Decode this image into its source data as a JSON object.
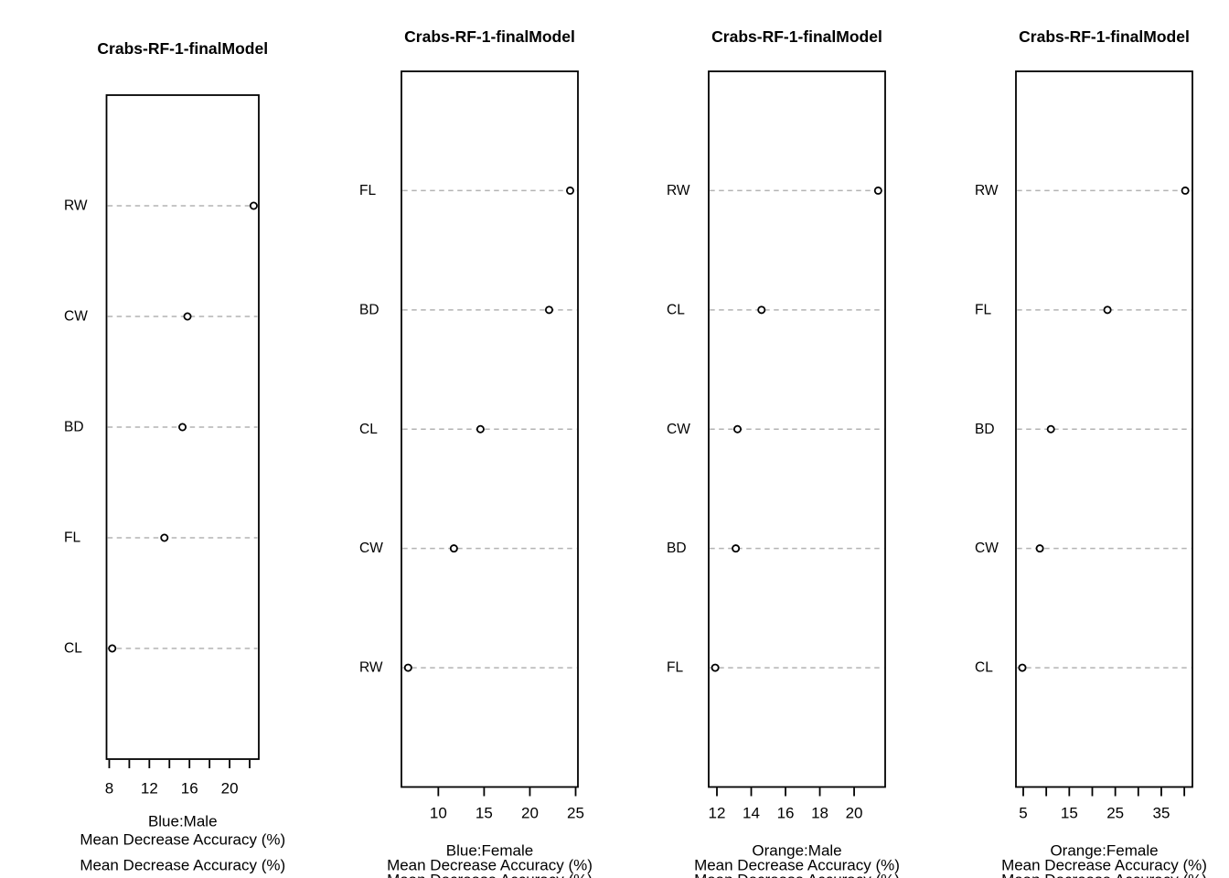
{
  "style": {
    "background": "#ffffff",
    "text_color": "#000000",
    "box_color": "#000000",
    "grid_color": "#b3b3b3",
    "point_fill": "#ffffff",
    "point_stroke": "#000000"
  },
  "chart_data": [
    {
      "type": "scatter",
      "subtype": "dotchart",
      "title": "Crabs-RF-1-finalModel",
      "categories": [
        "RW",
        "CW",
        "BD",
        "FL",
        "CL"
      ],
      "values": [
        22.4,
        15.8,
        15.3,
        13.5,
        8.3
      ],
      "xlabel": "Mean Decrease Accuracy (%)",
      "caption_lines": [
        "Blue:Male",
        "Mean Decrease Accuracy (%)",
        "Mean Decrease Accuracy (%)"
      ],
      "xlim": [
        7.73,
        22.91
      ],
      "ticks": [
        8,
        10,
        12,
        14,
        16,
        18,
        20,
        22
      ],
      "labeled_ticks": [
        8,
        12,
        16,
        20
      ],
      "grid": "dashed-horizontal",
      "legend": "none",
      "marker": "open-circle"
    },
    {
      "type": "scatter",
      "subtype": "dotchart",
      "title": "Crabs-RF-1-finalModel",
      "categories": [
        "FL",
        "BD",
        "CL",
        "CW",
        "RW"
      ],
      "values": [
        24.4,
        22.1,
        14.6,
        11.7,
        6.7
      ],
      "xlabel": "Mean Decrease Accuracy (%)",
      "caption_lines": [
        "Blue:Female",
        "Mean Decrease Accuracy (%)",
        "Mean Decrease Accuracy (%)"
      ],
      "xlim": [
        5.97,
        25.25
      ],
      "ticks": [
        10,
        15,
        20,
        25
      ],
      "labeled_ticks": [
        10,
        15,
        20,
        25
      ],
      "grid": "dashed-horizontal",
      "legend": "none",
      "marker": "open-circle"
    },
    {
      "type": "scatter",
      "subtype": "dotchart",
      "title": "Crabs-RF-1-finalModel",
      "categories": [
        "RW",
        "CL",
        "CW",
        "BD",
        "FL"
      ],
      "values": [
        21.4,
        14.6,
        13.2,
        13.1,
        11.9
      ],
      "xlabel": "Mean Decrease Accuracy (%)",
      "caption_lines": [
        "Orange:Male",
        "Mean Decrease Accuracy (%)",
        "Mean Decrease Accuracy (%)"
      ],
      "xlim": [
        11.52,
        21.81
      ],
      "ticks": [
        12,
        14,
        16,
        18,
        20
      ],
      "labeled_ticks": [
        12,
        14,
        16,
        18,
        20
      ],
      "grid": "dashed-horizontal",
      "legend": "none",
      "marker": "open-circle"
    },
    {
      "type": "scatter",
      "subtype": "dotchart",
      "title": "Crabs-RF-1-finalModel",
      "categories": [
        "RW",
        "FL",
        "BD",
        "CW",
        "CL"
      ],
      "values": [
        40.2,
        23.3,
        11.0,
        8.6,
        4.8
      ],
      "xlabel": "Mean Decrease Accuracy (%)",
      "caption_lines": [
        "Orange:Female",
        "Mean Decrease Accuracy (%)",
        "Mean Decrease Accuracy (%)"
      ],
      "xlim": [
        3.41,
        41.76
      ],
      "ticks": [
        5,
        10,
        15,
        20,
        25,
        30,
        35,
        40
      ],
      "labeled_ticks": [
        5,
        15,
        25,
        35
      ],
      "grid": "dashed-horizontal",
      "legend": "none",
      "marker": "open-circle"
    }
  ]
}
